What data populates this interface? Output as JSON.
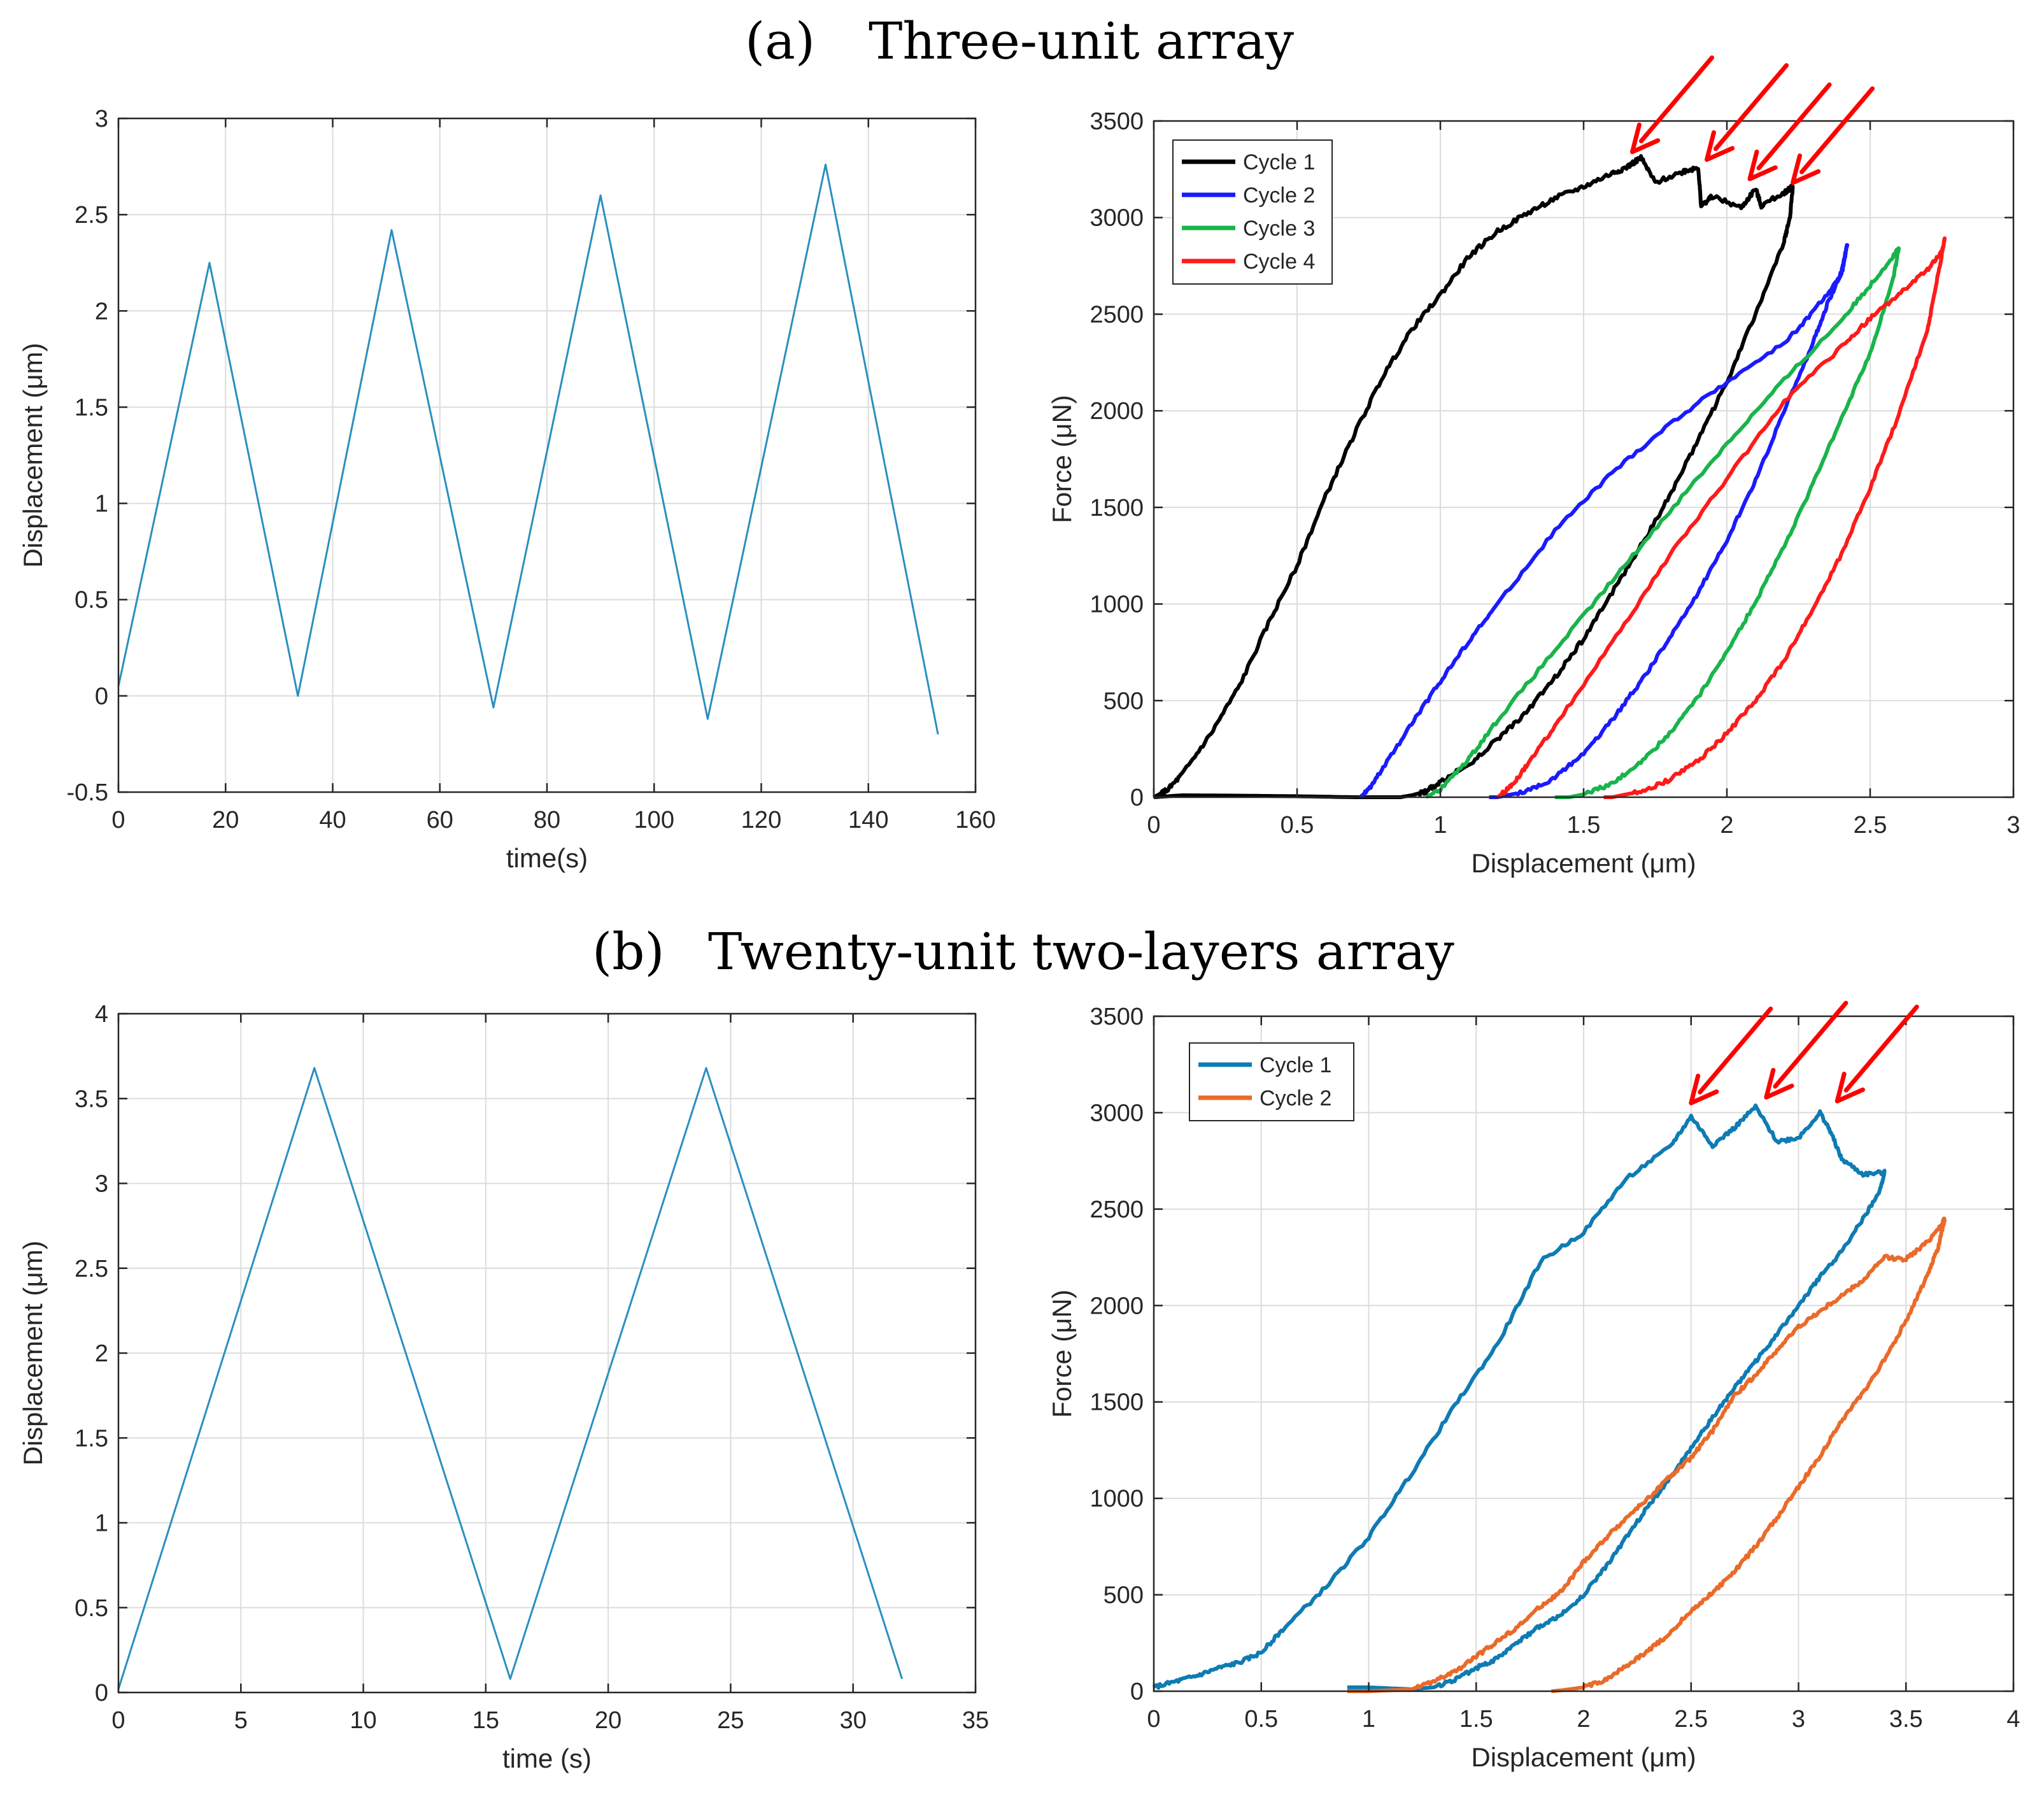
{
  "figure": {
    "panel_a": {
      "letter": "(a)",
      "title": "Three-unit array"
    },
    "panel_b": {
      "letter": "(b)",
      "title": "Twenty-unit two-layers array"
    }
  },
  "colors": {
    "axis": "#262626",
    "grid": "#dcdcdc",
    "waveform": "#2a8fbf",
    "arrow": "#ff0000",
    "a_cycle1": "#000000",
    "a_cycle2": "#1a1aff",
    "a_cycle3": "#19b44b",
    "a_cycle4": "#ff1a1a",
    "b_cycle1": "#0f7bb3",
    "b_cycle2": "#ea6a2a"
  },
  "chart_data": [
    {
      "id": "a-left",
      "type": "line",
      "title": "",
      "xlabel": "time(s)",
      "ylabel": "Displacement (μm)",
      "xlim": [
        0,
        160
      ],
      "ylim": [
        -0.5,
        3
      ],
      "xticks": [
        0,
        20,
        40,
        60,
        80,
        100,
        120,
        140,
        160
      ],
      "yticks": [
        -0.5,
        0,
        0.5,
        1,
        1.5,
        2,
        2.5,
        3
      ],
      "grid": true,
      "series": [
        {
          "name": "Displacement",
          "color_key": "waveform",
          "x": [
            0,
            17,
            33.5,
            51,
            70,
            90,
            110,
            132,
            153
          ],
          "y": [
            0.05,
            2.25,
            0.0,
            2.42,
            -0.06,
            2.6,
            -0.12,
            2.76,
            -0.2
          ]
        }
      ]
    },
    {
      "id": "a-right",
      "type": "line",
      "title": "",
      "xlabel": "Displacement (μm)",
      "ylabel": "Force (μN)",
      "xlim": [
        0,
        3
      ],
      "ylim": [
        0,
        3500
      ],
      "xticks": [
        0,
        0.5,
        1,
        1.5,
        2,
        2.5,
        3
      ],
      "yticks": [
        0,
        500,
        1000,
        1500,
        2000,
        2500,
        3000,
        3500
      ],
      "grid": true,
      "legend": {
        "position": "top-left",
        "entries": [
          "Cycle 1",
          "Cycle 2",
          "Cycle 3",
          "Cycle 4"
        ]
      },
      "arrows": [
        [
          1.67,
          3340
        ],
        [
          1.93,
          3300
        ],
        [
          2.08,
          3200
        ],
        [
          2.23,
          3180
        ]
      ],
      "series": [
        {
          "name": "Cycle 1",
          "color_key": "a_cycle1",
          "jitter": 12,
          "x": [
            0,
            0.05,
            0.1,
            0.2,
            0.3,
            0.4,
            0.5,
            0.6,
            0.7,
            0.8,
            0.9,
            1.0,
            1.1,
            1.2,
            1.3,
            1.4,
            1.5,
            1.6,
            1.65,
            1.7,
            1.75,
            1.85,
            1.9,
            1.91,
            1.95,
            2.05,
            2.1,
            2.12,
            2.2,
            2.23,
            2.22,
            2.2,
            2.1,
            2.0,
            1.9,
            1.8,
            1.7,
            1.6,
            1.5,
            1.4,
            1.3,
            1.2,
            1.1,
            1.0,
            0.95,
            0.9,
            0.86,
            0.7,
            0.5,
            0.3,
            0.1,
            0.0
          ],
          "y": [
            0,
            40,
            120,
            330,
            580,
            900,
            1200,
            1560,
            1880,
            2180,
            2420,
            2600,
            2800,
            2930,
            3020,
            3100,
            3160,
            3230,
            3260,
            3310,
            3180,
            3240,
            3260,
            3060,
            3110,
            3050,
            3150,
            3060,
            3130,
            3160,
            3000,
            2880,
            2500,
            2150,
            1850,
            1560,
            1300,
            1060,
            820,
            620,
            440,
            300,
            170,
            80,
            30,
            10,
            0,
            0,
            5,
            8,
            10,
            0
          ]
        },
        {
          "name": "Cycle 2",
          "color_key": "a_cycle2",
          "jitter": 10,
          "x": [
            0.72,
            0.75,
            0.8,
            0.9,
            1.0,
            1.1,
            1.2,
            1.4,
            1.6,
            1.8,
            2.0,
            2.2,
            2.3,
            2.4,
            2.42,
            2.4,
            2.35,
            2.3,
            2.2,
            2.1,
            2.0,
            1.9,
            1.8,
            1.7,
            1.6,
            1.5,
            1.4,
            1.3,
            1.2,
            1.17
          ],
          "y": [
            0,
            40,
            150,
            380,
            600,
            810,
            1000,
            1380,
            1680,
            1930,
            2150,
            2350,
            2510,
            2700,
            2860,
            2720,
            2550,
            2350,
            2000,
            1640,
            1330,
            1060,
            820,
            600,
            400,
            230,
            100,
            30,
            0,
            0
          ]
        },
        {
          "name": "Cycle 3",
          "color_key": "a_cycle3",
          "jitter": 10,
          "x": [
            0.95,
            1.0,
            1.1,
            1.2,
            1.4,
            1.6,
            1.8,
            2.0,
            2.2,
            2.4,
            2.5,
            2.58,
            2.6,
            2.58,
            2.5,
            2.4,
            2.3,
            2.2,
            2.1,
            2.0,
            1.9,
            1.8,
            1.7,
            1.6,
            1.5,
            1.45,
            1.4
          ],
          "y": [
            0,
            40,
            200,
            400,
            760,
            1120,
            1480,
            1830,
            2160,
            2470,
            2650,
            2800,
            2840,
            2680,
            2300,
            1960,
            1620,
            1300,
            1010,
            750,
            520,
            330,
            180,
            70,
            15,
            0,
            0
          ]
        },
        {
          "name": "Cycle 4",
          "color_key": "a_cycle4",
          "jitter": 10,
          "x": [
            1.2,
            1.25,
            1.3,
            1.4,
            1.6,
            1.8,
            2.0,
            2.2,
            2.4,
            2.5,
            2.6,
            2.7,
            2.75,
            2.76,
            2.73,
            2.7,
            2.6,
            2.5,
            2.4,
            2.3,
            2.2,
            2.1,
            2.0,
            1.9,
            1.8,
            1.7,
            1.6,
            1.57
          ],
          "y": [
            0,
            60,
            160,
            370,
            800,
            1250,
            1650,
            2050,
            2330,
            2480,
            2600,
            2730,
            2820,
            2890,
            2650,
            2420,
            1980,
            1600,
            1260,
            970,
            710,
            500,
            330,
            190,
            90,
            30,
            0,
            0
          ]
        }
      ]
    },
    {
      "id": "b-left",
      "type": "line",
      "title": "",
      "xlabel": "time (s)",
      "ylabel": "Displacement (μm)",
      "xlim": [
        0,
        35
      ],
      "ylim": [
        0,
        4
      ],
      "xticks": [
        0,
        5,
        10,
        15,
        20,
        25,
        30,
        35
      ],
      "yticks": [
        0,
        0.5,
        1,
        1.5,
        2,
        2.5,
        3,
        3.5,
        4
      ],
      "grid": true,
      "series": [
        {
          "name": "Displacement",
          "color_key": "waveform",
          "x": [
            0,
            8,
            16,
            24,
            32
          ],
          "y": [
            0.02,
            3.68,
            0.08,
            3.68,
            0.08
          ]
        }
      ]
    },
    {
      "id": "b-right",
      "type": "line",
      "title": "",
      "xlabel": "Displacement (μm)",
      "ylabel": "Force (μN)",
      "xlim": [
        0,
        4
      ],
      "ylim": [
        0,
        3500
      ],
      "xticks": [
        0,
        0.5,
        1,
        1.5,
        2,
        2.5,
        3,
        3.5,
        4
      ],
      "yticks": [
        0,
        500,
        1000,
        1500,
        2000,
        2500,
        3000,
        3500
      ],
      "grid": true,
      "legend": {
        "position": "top-left",
        "entries": [
          "Cycle 1",
          "Cycle 2"
        ]
      },
      "arrows": [
        [
          2.5,
          3050
        ],
        [
          2.85,
          3080
        ],
        [
          3.18,
          3060
        ]
      ],
      "series": [
        {
          "name": "Cycle 1",
          "color_key": "b_cycle1",
          "jitter": 10,
          "x": [
            0,
            0.1,
            0.2,
            0.3,
            0.4,
            0.5,
            0.6,
            0.8,
            1.0,
            1.2,
            1.4,
            1.6,
            1.8,
            2.0,
            2.2,
            2.4,
            2.5,
            2.6,
            2.7,
            2.8,
            2.9,
            3.0,
            3.1,
            3.15,
            3.2,
            3.3,
            3.4,
            3.38,
            3.3,
            3.2,
            3.1,
            3.0,
            2.9,
            2.8,
            2.7,
            2.6,
            2.5,
            2.4,
            2.3,
            2.2,
            2.1,
            2.0,
            1.9,
            1.8,
            1.7,
            1.6,
            1.5,
            1.4,
            1.3,
            1.2,
            1.1,
            1.0,
            0.9
          ],
          "y": [
            20,
            50,
            80,
            120,
            150,
            200,
            320,
            540,
            800,
            1130,
            1480,
            1800,
            2230,
            2380,
            2660,
            2820,
            2980,
            2830,
            2920,
            3030,
            2850,
            2870,
            3000,
            2900,
            2760,
            2680,
            2690,
            2600,
            2450,
            2280,
            2150,
            2000,
            1850,
            1710,
            1570,
            1420,
            1260,
            1100,
            960,
            800,
            640,
            500,
            400,
            340,
            260,
            170,
            120,
            60,
            20,
            10,
            15,
            20,
            20
          ]
        },
        {
          "name": "Cycle 2",
          "color_key": "b_cycle2",
          "jitter": 10,
          "x": [
            0.9,
            1.0,
            1.2,
            1.3,
            1.4,
            1.5,
            1.6,
            1.7,
            1.8,
            1.9,
            2.0,
            2.1,
            2.2,
            2.3,
            2.4,
            2.5,
            2.6,
            2.7,
            2.8,
            2.9,
            3.0,
            3.1,
            3.2,
            3.3,
            3.4,
            3.5,
            3.6,
            3.67,
            3.68,
            3.65,
            3.6,
            3.5,
            3.4,
            3.3,
            3.2,
            3.1,
            3.0,
            2.9,
            2.8,
            2.7,
            2.6,
            2.5,
            2.4,
            2.3,
            2.2,
            2.1,
            2.0,
            1.9,
            1.85
          ],
          "y": [
            0,
            0,
            10,
            50,
            100,
            180,
            260,
            340,
            440,
            520,
            670,
            790,
            900,
            1000,
            1110,
            1210,
            1350,
            1530,
            1640,
            1770,
            1890,
            1970,
            2050,
            2130,
            2250,
            2240,
            2330,
            2430,
            2450,
            2300,
            2160,
            1920,
            1720,
            1550,
            1400,
            1220,
            1060,
            900,
            750,
            620,
            510,
            420,
            300,
            210,
            130,
            60,
            20,
            5,
            0
          ]
        }
      ]
    }
  ]
}
